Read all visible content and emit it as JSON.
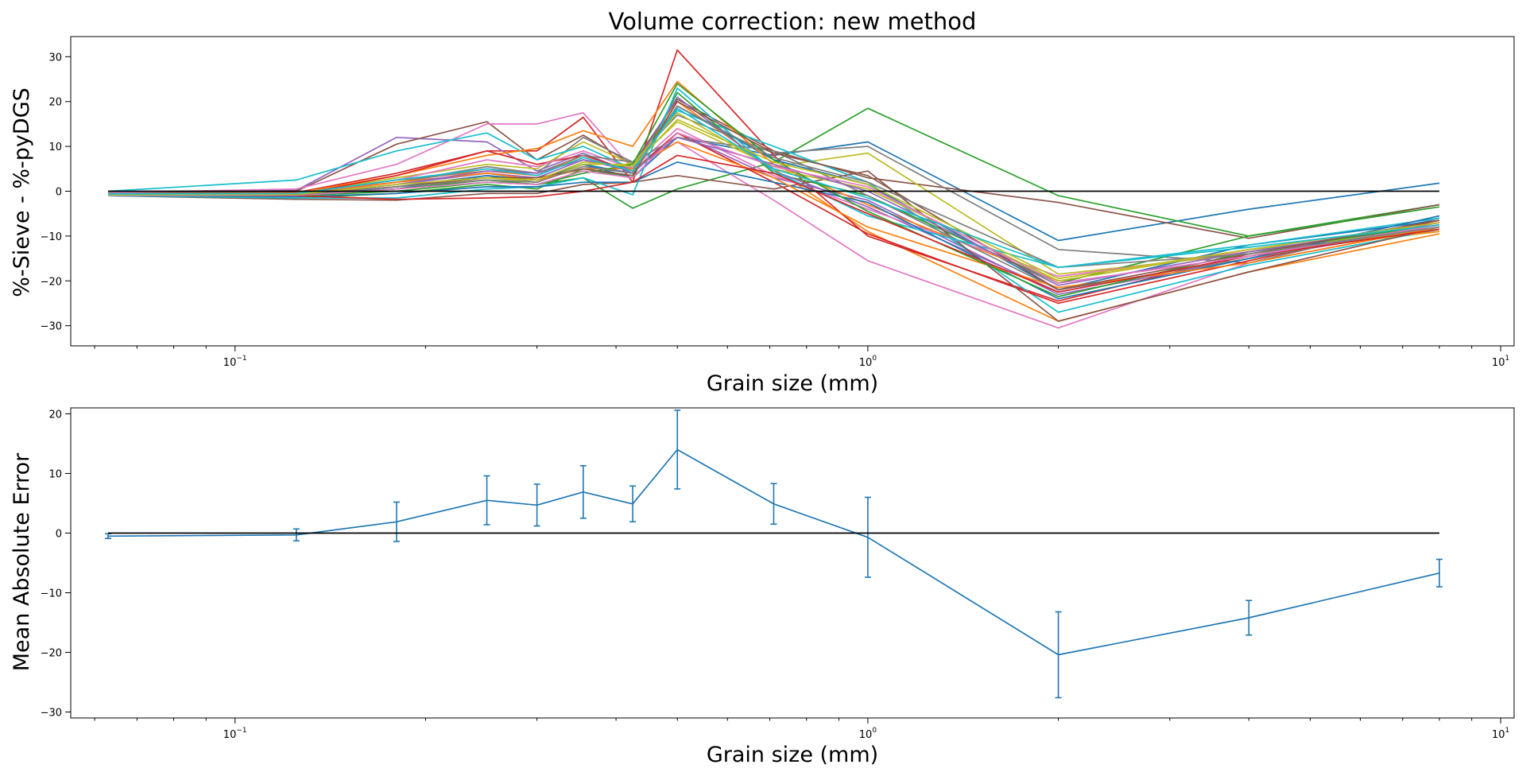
{
  "chart_data": [
    {
      "type": "line",
      "title": "Volume correction: new method",
      "xlabel": "Grain size (mm)",
      "ylabel": "%-Sieve - %-pyDGS",
      "xscale": "log",
      "xlim": [
        0.055,
        10.5
      ],
      "ylim": [
        -34.5,
        34.5
      ],
      "x_ticks": [
        {
          "value": 0.1,
          "base": "10",
          "exp": "−1"
        },
        {
          "value": 1,
          "base": "10",
          "exp": "0"
        },
        {
          "value": 10,
          "base": "10",
          "exp": "1"
        }
      ],
      "y_ticks": [
        {
          "value": -30,
          "label": "−30"
        },
        {
          "value": -20,
          "label": "−20"
        },
        {
          "value": -10,
          "label": "−10"
        },
        {
          "value": 0,
          "label": "0"
        },
        {
          "value": 10,
          "label": "10"
        },
        {
          "value": 20,
          "label": "20"
        },
        {
          "value": 30,
          "label": "30"
        }
      ],
      "x": [
        0.063,
        0.125,
        0.18,
        0.25,
        0.3,
        0.355,
        0.425,
        0.5,
        0.71,
        1.0,
        2.0,
        4.0,
        8.0
      ],
      "reference_line": {
        "y": 0,
        "color": "#000000"
      },
      "series": [
        {
          "color": "#1f77b4",
          "values": [
            -0.8,
            -0.5,
            0.5,
            3.5,
            2.0,
            6.0,
            3.0,
            12.0,
            8.0,
            11.0,
            -11.0,
            -4.0,
            1.8
          ]
        },
        {
          "color": "#ff7f0e",
          "values": [
            -0.9,
            -0.9,
            2.5,
            4.5,
            3.5,
            8.0,
            4.5,
            20.0,
            5.0,
            -9.0,
            -29.0,
            -18.0,
            -9.5
          ]
        },
        {
          "color": "#2ca02c",
          "values": [
            -0.9,
            -0.8,
            0.5,
            2.5,
            1.5,
            3.0,
            -3.8,
            0.5,
            6.5,
            18.5,
            -1.0,
            -10.0,
            -3.0
          ]
        },
        {
          "color": "#d62728",
          "values": [
            -0.5,
            -0.3,
            4.0,
            9.0,
            9.0,
            16.5,
            2.0,
            31.5,
            8.0,
            -10.0,
            -24.5,
            -14.0,
            -7.0
          ]
        },
        {
          "color": "#9467bd",
          "values": [
            -0.3,
            0.2,
            12.0,
            11.0,
            4.5,
            8.5,
            4.0,
            13.0,
            3.0,
            -2.0,
            -23.0,
            -15.0,
            -8.0
          ]
        },
        {
          "color": "#8c564b",
          "values": [
            -0.5,
            0.0,
            10.5,
            15.5,
            7.0,
            12.5,
            6.0,
            20.5,
            9.0,
            3.0,
            -2.5,
            -10.5,
            -3.0
          ]
        },
        {
          "color": "#e377c2",
          "values": [
            -0.3,
            0.5,
            6.0,
            15.0,
            15.0,
            17.5,
            5.0,
            11.0,
            -2.0,
            -15.5,
            -30.5,
            -16.0,
            -8.0
          ]
        },
        {
          "color": "#7f7f7f",
          "values": [
            -0.5,
            -0.5,
            2.0,
            5.5,
            4.0,
            12.0,
            6.5,
            17.0,
            8.5,
            10.0,
            -13.0,
            -16.0,
            -6.0
          ]
        },
        {
          "color": "#bcbd22",
          "values": [
            -0.6,
            -0.6,
            3.0,
            6.0,
            5.0,
            11.0,
            6.0,
            15.5,
            5.5,
            8.5,
            -18.5,
            -14.0,
            -9.0
          ]
        },
        {
          "color": "#17becf",
          "values": [
            0.0,
            2.5,
            9.0,
            13.0,
            7.0,
            10.0,
            5.0,
            18.0,
            10.0,
            2.0,
            -27.0,
            -16.5,
            -8.5
          ]
        },
        {
          "color": "#1f77b4",
          "values": [
            -1.0,
            -1.0,
            1.0,
            3.5,
            2.5,
            6.0,
            4.0,
            19.0,
            7.0,
            1.5,
            -22.0,
            -12.0,
            -6.5
          ]
        },
        {
          "color": "#ff7f0e",
          "values": [
            -0.6,
            -0.4,
            3.5,
            8.0,
            9.5,
            13.5,
            10.0,
            24.5,
            6.0,
            -3.0,
            -20.0,
            -13.0,
            -9.0
          ]
        },
        {
          "color": "#2ca02c",
          "values": [
            -1.0,
            -1.5,
            -0.5,
            1.5,
            0.5,
            5.0,
            3.0,
            22.0,
            4.0,
            -1.0,
            -20.5,
            -10.0,
            -3.5
          ]
        },
        {
          "color": "#d62728",
          "values": [
            -0.8,
            -0.8,
            3.5,
            9.0,
            6.0,
            8.0,
            4.5,
            13.0,
            2.0,
            -9.5,
            -25.0,
            -15.5,
            -6.5
          ]
        },
        {
          "color": "#9467bd",
          "values": [
            -0.9,
            -1.0,
            1.5,
            4.0,
            3.0,
            7.0,
            5.0,
            21.0,
            4.5,
            -3.5,
            -22.5,
            -14.5,
            -7.0
          ]
        },
        {
          "color": "#8c564b",
          "values": [
            -1.0,
            -1.8,
            -2.0,
            -0.5,
            -0.5,
            1.5,
            2.0,
            3.5,
            0.5,
            4.5,
            -29.0,
            -18.0,
            -8.0
          ]
        },
        {
          "color": "#e377c2",
          "values": [
            -0.7,
            -0.7,
            2.5,
            7.0,
            5.5,
            9.0,
            5.0,
            14.0,
            3.5,
            -4.0,
            -19.0,
            -13.5,
            -8.0
          ]
        },
        {
          "color": "#7f7f7f",
          "values": [
            -0.8,
            -0.6,
            2.0,
            5.0,
            4.0,
            8.0,
            6.5,
            12.0,
            9.0,
            -1.0,
            -22.0,
            -15.0,
            -7.5
          ]
        },
        {
          "color": "#bcbd22",
          "values": [
            -0.9,
            -0.8,
            1.0,
            3.0,
            2.0,
            6.0,
            6.0,
            17.5,
            5.0,
            0.5,
            -20.0,
            -13.0,
            -8.5
          ]
        },
        {
          "color": "#17becf",
          "values": [
            -1.0,
            -1.5,
            -1.5,
            0.5,
            1.0,
            3.0,
            -0.8,
            23.0,
            4.5,
            -5.5,
            -17.0,
            -12.0,
            -6.0
          ]
        },
        {
          "color": "#1f77b4",
          "values": [
            -0.9,
            -1.2,
            -0.5,
            1.0,
            1.0,
            2.0,
            2.0,
            6.5,
            2.0,
            -2.5,
            -24.0,
            -15.0,
            -5.5
          ]
        },
        {
          "color": "#ff7f0e",
          "values": [
            -0.8,
            -0.7,
            2.0,
            4.0,
            2.5,
            5.0,
            5.0,
            11.0,
            3.0,
            -8.0,
            -21.5,
            -16.0,
            -8.0
          ]
        },
        {
          "color": "#2ca02c",
          "values": [
            -0.9,
            -1.0,
            0.0,
            2.0,
            1.5,
            4.0,
            6.0,
            24.0,
            7.0,
            -4.5,
            -23.5,
            -13.5,
            -7.5
          ]
        },
        {
          "color": "#d62728",
          "values": [
            -0.8,
            -1.0,
            -1.8,
            -1.5,
            -1.2,
            0.0,
            2.0,
            8.0,
            4.0,
            -5.0,
            -22.5,
            -14.5,
            -8.5
          ]
        },
        {
          "color": "#9467bd",
          "values": [
            -0.7,
            -0.6,
            1.5,
            4.5,
            4.0,
            7.0,
            4.5,
            12.0,
            6.0,
            0.0,
            -21.0,
            -13.5,
            -7.0
          ]
        },
        {
          "color": "#8c564b",
          "values": [
            -0.8,
            -0.8,
            1.0,
            3.0,
            3.0,
            5.0,
            3.5,
            20.0,
            8.5,
            3.5,
            -22.0,
            -14.0,
            -6.5
          ]
        },
        {
          "color": "#e377c2",
          "values": [
            -0.9,
            -0.9,
            0.5,
            2.0,
            1.5,
            4.5,
            3.0,
            13.0,
            5.5,
            1.0,
            -20.5,
            -14.5,
            -7.5
          ]
        },
        {
          "color": "#7f7f7f",
          "values": [
            -0.7,
            -0.8,
            1.0,
            2.5,
            2.0,
            5.5,
            4.0,
            19.0,
            7.5,
            2.0,
            -17.0,
            -14.0,
            -8.0
          ]
        },
        {
          "color": "#bcbd22",
          "values": [
            -0.8,
            -0.7,
            1.5,
            3.0,
            2.5,
            6.5,
            5.5,
            16.0,
            6.5,
            1.5,
            -19.5,
            -13.0,
            -7.0
          ]
        },
        {
          "color": "#17becf",
          "values": [
            -0.6,
            -0.5,
            2.5,
            5.0,
            3.5,
            7.5,
            4.5,
            18.5,
            5.0,
            -1.5,
            -17.0,
            -12.5,
            -7.5
          ]
        }
      ]
    },
    {
      "type": "line",
      "title": "",
      "xlabel": "Grain size (mm)",
      "ylabel": "Mean Absolute Error",
      "xscale": "log",
      "xlim": [
        0.055,
        10.5
      ],
      "ylim": [
        -31,
        21
      ],
      "x_ticks": [
        {
          "value": 0.1,
          "base": "10",
          "exp": "−1"
        },
        {
          "value": 1,
          "base": "10",
          "exp": "0"
        },
        {
          "value": 10,
          "base": "10",
          "exp": "1"
        }
      ],
      "y_ticks": [
        {
          "value": -30,
          "label": "−30"
        },
        {
          "value": -20,
          "label": "−20"
        },
        {
          "value": -10,
          "label": "−10"
        },
        {
          "value": 0,
          "label": "0"
        },
        {
          "value": 10,
          "label": "10"
        },
        {
          "value": 20,
          "label": "20"
        }
      ],
      "x": [
        0.063,
        0.125,
        0.18,
        0.25,
        0.3,
        0.355,
        0.425,
        0.5,
        0.71,
        1.0,
        2.0,
        4.0,
        8.0
      ],
      "reference_line": {
        "y": 0,
        "color": "#000000"
      },
      "series": [
        {
          "color": "#1f77b4",
          "values": [
            -0.5,
            -0.3,
            1.9,
            5.5,
            4.7,
            6.9,
            4.9,
            14.0,
            4.9,
            -0.7,
            -20.4,
            -14.2,
            -6.7
          ],
          "error": [
            0.4,
            1.0,
            3.3,
            4.1,
            3.5,
            4.4,
            3.0,
            6.6,
            3.4,
            6.7,
            7.2,
            2.9,
            2.3
          ]
        }
      ]
    }
  ]
}
